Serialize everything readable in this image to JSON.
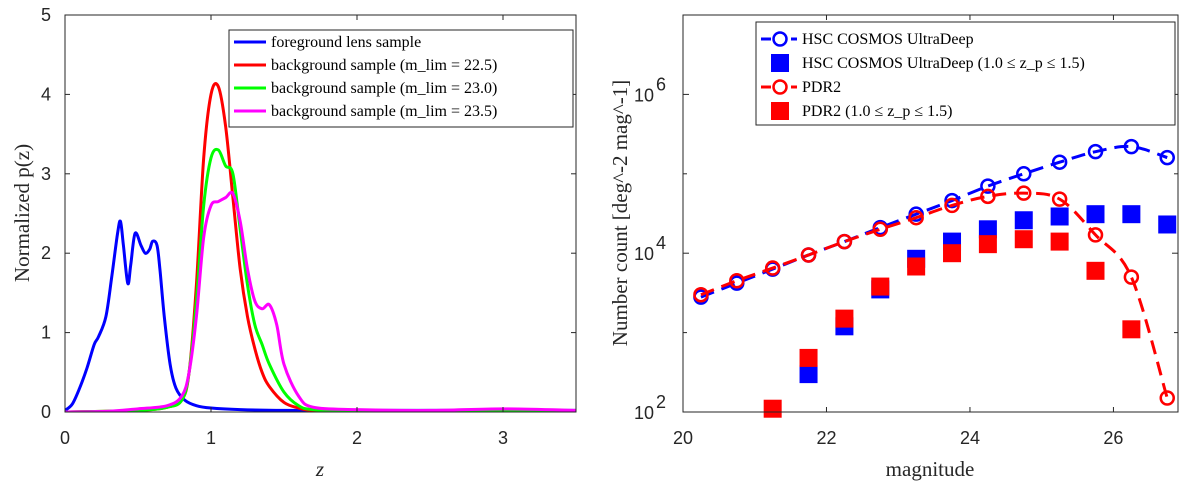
{
  "chart_data": [
    {
      "type": "line",
      "xlabel": "z",
      "ylabel": "Normalized p(z)",
      "xlim": [
        0,
        3.5
      ],
      "ylim": [
        0,
        5
      ],
      "xticks": [
        0,
        1,
        2,
        3
      ],
      "yticks": [
        0,
        1,
        2,
        3,
        4,
        5
      ],
      "xtick_labels": [
        "0",
        "1",
        "2",
        "3"
      ],
      "ytick_labels": [
        "0",
        "1",
        "2",
        "3",
        "4",
        "5"
      ],
      "grid": false,
      "legend_position": "top-right",
      "series": [
        {
          "name": "foreground lens sample",
          "color": "#0000ff",
          "x": [
            0,
            0.05,
            0.1,
            0.15,
            0.2,
            0.23,
            0.28,
            0.32,
            0.36,
            0.38,
            0.4,
            0.43,
            0.45,
            0.48,
            0.52,
            0.55,
            0.58,
            0.6,
            0.63,
            0.65,
            0.68,
            0.72,
            0.76,
            0.82,
            0.9,
            1.0,
            1.2,
            1.5,
            2.0,
            2.5,
            3.0,
            3.5
          ],
          "y": [
            0.02,
            0.1,
            0.3,
            0.55,
            0.85,
            0.95,
            1.2,
            1.7,
            2.25,
            2.4,
            2.1,
            1.62,
            1.85,
            2.25,
            2.1,
            2.0,
            2.05,
            2.15,
            2.1,
            1.8,
            1.2,
            0.6,
            0.3,
            0.15,
            0.08,
            0.05,
            0.03,
            0.02,
            0.02,
            0.02,
            0.02,
            0.02
          ]
        },
        {
          "name": "background sample (m_lim = 22.5)",
          "color": "#ff0000",
          "x": [
            0,
            0.5,
            0.7,
            0.8,
            0.85,
            0.9,
            0.95,
            1.0,
            1.05,
            1.1,
            1.15,
            1.2,
            1.25,
            1.3,
            1.35,
            1.4,
            1.5,
            1.6,
            1.7,
            2.0,
            2.5,
            3.5
          ],
          "y": [
            0,
            0.02,
            0.06,
            0.15,
            0.5,
            1.6,
            3.2,
            4.0,
            4.1,
            3.6,
            2.7,
            1.8,
            1.2,
            0.8,
            0.5,
            0.32,
            0.12,
            0.05,
            0.02,
            0.01,
            0.01,
            0.01
          ]
        },
        {
          "name": "background sample (m_lim = 23.0)",
          "color": "#00ff00",
          "x": [
            0,
            0.5,
            0.7,
            0.8,
            0.85,
            0.9,
            0.95,
            1.0,
            1.05,
            1.1,
            1.15,
            1.2,
            1.25,
            1.3,
            1.35,
            1.4,
            1.5,
            1.6,
            1.7,
            2.0,
            2.5,
            3.5
          ],
          "y": [
            0,
            0.02,
            0.06,
            0.15,
            0.5,
            1.4,
            2.6,
            3.2,
            3.3,
            3.1,
            3.0,
            2.3,
            1.6,
            1.1,
            0.85,
            0.6,
            0.25,
            0.08,
            0.03,
            0.01,
            0.01,
            0.01
          ]
        },
        {
          "name": "background sample (m_lim = 23.5)",
          "color": "#ff00ff",
          "x": [
            0,
            0.3,
            0.5,
            0.7,
            0.8,
            0.85,
            0.9,
            0.95,
            1.0,
            1.05,
            1.1,
            1.15,
            1.2,
            1.25,
            1.3,
            1.35,
            1.4,
            1.45,
            1.5,
            1.6,
            1.7,
            2.0,
            2.5,
            3.0,
            3.5
          ],
          "y": [
            0,
            0.01,
            0.04,
            0.08,
            0.2,
            0.5,
            1.2,
            2.2,
            2.6,
            2.65,
            2.7,
            2.75,
            2.4,
            1.8,
            1.4,
            1.3,
            1.35,
            1.1,
            0.6,
            0.2,
            0.06,
            0.03,
            0.02,
            0.04,
            0.02
          ]
        }
      ]
    },
    {
      "type": "scatter",
      "xlabel": "magnitude",
      "ylabel": "Number count [deg^-2 mag^-1]",
      "xlim": [
        20,
        26.9
      ],
      "ylim": [
        100,
        10000000
      ],
      "yscale": "log",
      "xticks": [
        20,
        22,
        24,
        26
      ],
      "xtick_labels": [
        "20",
        "22",
        "24",
        "26"
      ],
      "yticks": [
        100,
        10000,
        1000000
      ],
      "ytick_labels": [
        {
          "base": "10",
          "exp": "2"
        },
        {
          "base": "10",
          "exp": "4"
        },
        {
          "base": "10",
          "exp": "6"
        }
      ],
      "grid": false,
      "legend_position": "top-right",
      "series": [
        {
          "name": "HSC COSMOS UltraDeep",
          "color": "#0000ff",
          "style": "dashed-line-open-circle",
          "x": [
            20.25,
            20.75,
            21.25,
            21.75,
            22.25,
            22.75,
            23.25,
            23.75,
            24.25,
            24.75,
            25.25,
            25.75,
            26.25,
            26.75
          ],
          "y": [
            2800,
            4200,
            6300,
            9500,
            14000,
            21000,
            31000,
            46000,
            70000,
            100000,
            140000,
            190000,
            220000,
            160000
          ]
        },
        {
          "name": "HSC COSMOS UltraDeep (1.0 ≤ z_p ≤ 1.5)",
          "color": "#0000ff",
          "style": "filled-square",
          "x": [
            21.75,
            22.25,
            22.75,
            23.25,
            23.75,
            24.25,
            24.75,
            25.25,
            25.75,
            26.25,
            26.75
          ],
          "y": [
            300,
            1200,
            3500,
            8500,
            14000,
            20000,
            26000,
            29000,
            31000,
            31000,
            23000
          ]
        },
        {
          "name": "PDR2",
          "color": "#ff0000",
          "style": "dashed-line-open-circle",
          "x": [
            20.25,
            20.75,
            21.25,
            21.75,
            22.25,
            22.75,
            23.25,
            23.75,
            24.25,
            24.75,
            25.25,
            25.75,
            26.25,
            26.75
          ],
          "y": [
            3000,
            4500,
            6500,
            9500,
            14000,
            20000,
            28000,
            40000,
            52000,
            57000,
            48000,
            17000,
            5000,
            150
          ]
        },
        {
          "name": "PDR2 (1.0 ≤ z_p ≤ 1.5)",
          "color": "#ff0000",
          "style": "filled-square",
          "x": [
            21.25,
            21.75,
            22.25,
            22.75,
            23.25,
            23.75,
            24.25,
            24.75,
            25.25,
            25.75,
            26.25
          ],
          "y": [
            110,
            480,
            1500,
            3800,
            6800,
            10000,
            13000,
            15000,
            14000,
            6000,
            1100
          ]
        }
      ]
    }
  ]
}
